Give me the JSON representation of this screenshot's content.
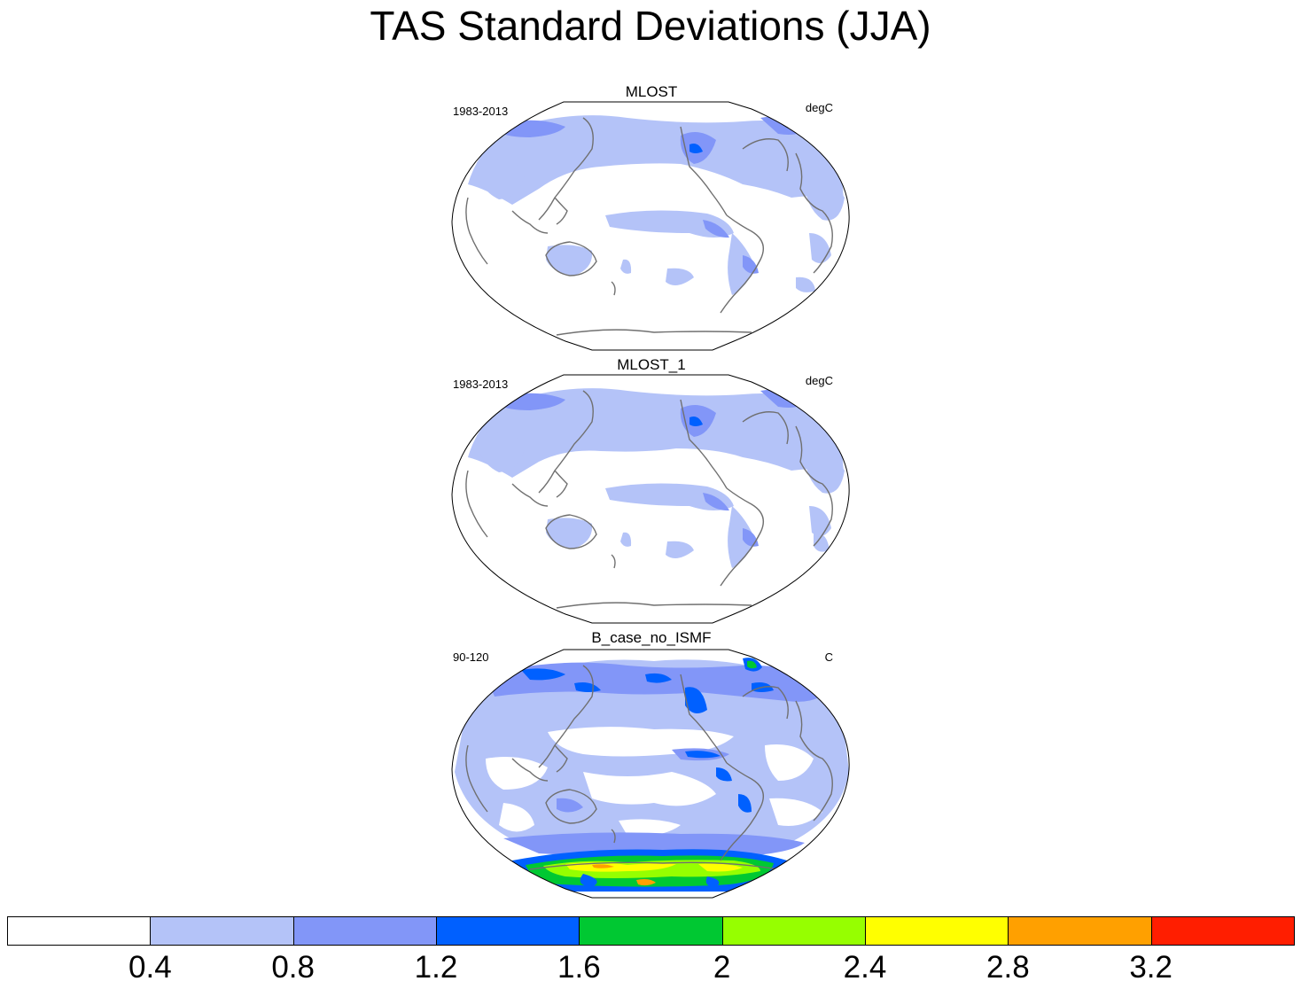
{
  "title": "TAS Standard Deviations (JJA)",
  "panels": [
    {
      "title": "MLOST",
      "left_label": "1983-2013",
      "right_label": "degC"
    },
    {
      "title": "MLOST_1",
      "left_label": "1983-2013",
      "right_label": "degC"
    },
    {
      "title": "B_case_no_ISMF",
      "left_label": "90-120",
      "right_label": "C"
    }
  ],
  "colorbar": {
    "colors": [
      "#ffffff",
      "#b4c3f8",
      "#8296f8",
      "#0060ff",
      "#00c832",
      "#96ff00",
      "#ffff00",
      "#ffa000",
      "#ff1e00"
    ],
    "labels": [
      "0.4",
      "0.8",
      "1.2",
      "1.6",
      "2",
      "2.4",
      "2.8",
      "3.2"
    ]
  }
}
